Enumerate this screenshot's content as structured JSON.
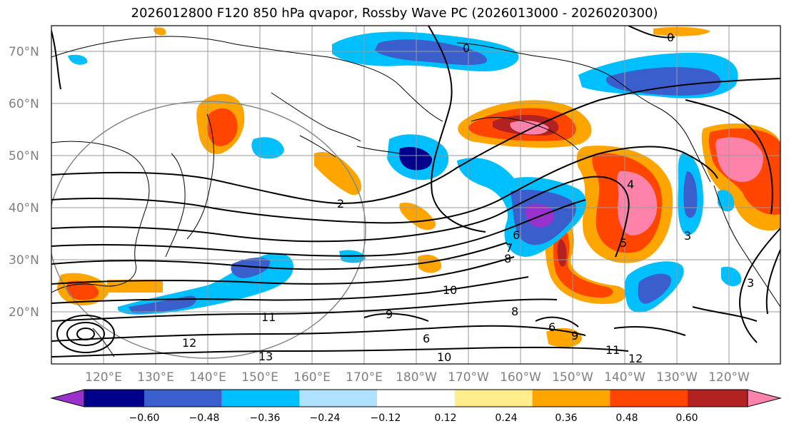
{
  "title": "2026012800 F120 850 hPa qvapor, Rossby Wave PC (2026013000 - 2026020300)",
  "map": {
    "lat_labels": [
      "70°N",
      "60°N",
      "50°N",
      "40°N",
      "30°N",
      "20°N"
    ],
    "lon_labels": [
      "120°E",
      "130°E",
      "140°E",
      "150°E",
      "160°E",
      "170°E",
      "180°W",
      "170°W",
      "160°W",
      "150°W",
      "140°W",
      "130°W",
      "120°W"
    ],
    "contour_labels": [
      "0",
      "0",
      "2",
      "4",
      "5",
      "6",
      "7",
      "8",
      "9",
      "10",
      "11",
      "12",
      "13",
      "3",
      "6",
      "8",
      "9",
      "11",
      "12",
      "10",
      "6",
      "3"
    ]
  },
  "colorbar": {
    "colors": [
      "#9932cc",
      "#00008b",
      "#3a5fcd",
      "#00bfff",
      "#b0e2ff",
      "#ffffff",
      "#ffec8b",
      "#ffa500",
      "#ff4500",
      "#b22222",
      "#ff82ab"
    ],
    "tick_labels": [
      "−0.60",
      "−0.48",
      "−0.36",
      "−0.24",
      "−0.12",
      "0.12",
      "0.24",
      "0.36",
      "0.48",
      "0.60"
    ]
  }
}
